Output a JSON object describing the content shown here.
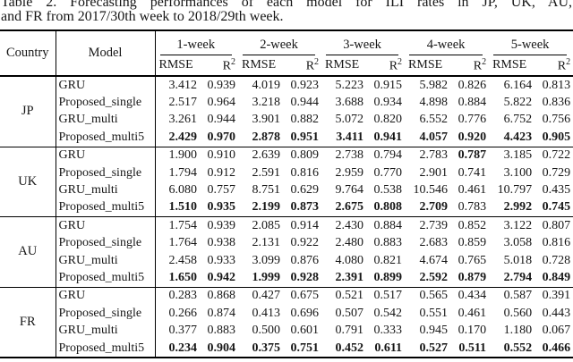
{
  "caption": {
    "line1": "Table 2. Forecasting performances of each model for ILI rates in JP, UK, AU,",
    "line2": "and FR from 2017/30th week to 2018/29th week."
  },
  "colors": {
    "background": "#ffffff",
    "text": "#161616",
    "rule": "#000000"
  },
  "table": {
    "country_header": "Country",
    "model_header": "Model",
    "week_headers": [
      "1-week",
      "2-week",
      "3-week",
      "4-week",
      "5-week"
    ],
    "metric_rmse": "RMSE",
    "metric_r2_base": "R",
    "metric_r2_sup": "2",
    "sections": [
      {
        "country": "JP",
        "rows": [
          {
            "model": "GRU",
            "values": [
              "3.412",
              "0.939",
              "4.019",
              "0.923",
              "5.223",
              "0.915",
              "5.982",
              "0.826",
              "6.164",
              "0.813"
            ],
            "bold": [
              false,
              false,
              false,
              false,
              false,
              false,
              false,
              false,
              false,
              false
            ]
          },
          {
            "model": "Proposed_single",
            "values": [
              "2.517",
              "0.964",
              "3.218",
              "0.944",
              "3.688",
              "0.934",
              "4.898",
              "0.884",
              "5.822",
              "0.836"
            ],
            "bold": [
              false,
              false,
              false,
              false,
              false,
              false,
              false,
              false,
              false,
              false
            ]
          },
          {
            "model": "GRU_multi",
            "values": [
              "3.261",
              "0.944",
              "3.901",
              "0.882",
              "5.072",
              "0.820",
              "6.552",
              "0.776",
              "6.752",
              "0.756"
            ],
            "bold": [
              false,
              false,
              false,
              false,
              false,
              false,
              false,
              false,
              false,
              false
            ]
          },
          {
            "model": "Proposed_multi5",
            "values": [
              "2.429",
              "0.970",
              "2.878",
              "0.951",
              "3.411",
              "0.941",
              "4.057",
              "0.920",
              "4.423",
              "0.905"
            ],
            "bold": [
              true,
              true,
              true,
              true,
              true,
              true,
              true,
              true,
              true,
              true
            ]
          }
        ]
      },
      {
        "country": "UK",
        "rows": [
          {
            "model": "GRU",
            "values": [
              "1.900",
              "0.910",
              "2.639",
              "0.809",
              "2.738",
              "0.794",
              "2.783",
              "0.787",
              "3.185",
              "0.722"
            ],
            "bold": [
              false,
              false,
              false,
              false,
              false,
              false,
              false,
              true,
              false,
              false
            ]
          },
          {
            "model": "Proposed_single",
            "values": [
              "1.794",
              "0.912",
              "2.591",
              "0.816",
              "2.959",
              "0.770",
              "2.901",
              "0.741",
              "3.100",
              "0.729"
            ],
            "bold": [
              false,
              false,
              false,
              false,
              false,
              false,
              false,
              false,
              false,
              false
            ]
          },
          {
            "model": "GRU_multi",
            "values": [
              "6.080",
              "0.757",
              "8.751",
              "0.629",
              "9.764",
              "0.538",
              "10.546",
              "0.461",
              "10.797",
              "0.435"
            ],
            "bold": [
              false,
              false,
              false,
              false,
              false,
              false,
              false,
              false,
              false,
              false
            ]
          },
          {
            "model": "Proposed_multi5",
            "values": [
              "1.510",
              "0.935",
              "2.199",
              "0.873",
              "2.675",
              "0.808",
              "2.709",
              "0.783",
              "2.992",
              "0.745"
            ],
            "bold": [
              true,
              true,
              true,
              true,
              true,
              true,
              true,
              false,
              true,
              true
            ]
          }
        ]
      },
      {
        "country": "AU",
        "rows": [
          {
            "model": "GRU",
            "values": [
              "1.754",
              "0.939",
              "2.085",
              "0.914",
              "2.430",
              "0.884",
              "2.739",
              "0.852",
              "3.122",
              "0.807"
            ],
            "bold": [
              false,
              false,
              false,
              false,
              false,
              false,
              false,
              false,
              false,
              false
            ]
          },
          {
            "model": "Proposed_single",
            "values": [
              "1.764",
              "0.938",
              "2.131",
              "0.922",
              "2.480",
              "0.883",
              "2.683",
              "0.859",
              "3.058",
              "0.816"
            ],
            "bold": [
              false,
              false,
              false,
              false,
              false,
              false,
              false,
              false,
              false,
              false
            ]
          },
          {
            "model": "GRU_multi",
            "values": [
              "2.458",
              "0.933",
              "3.099",
              "0.876",
              "4.080",
              "0.821",
              "4.674",
              "0.765",
              "5.018",
              "0.728"
            ],
            "bold": [
              false,
              false,
              false,
              false,
              false,
              false,
              false,
              false,
              false,
              false
            ]
          },
          {
            "model": "Proposed_multi5",
            "values": [
              "1.650",
              "0.942",
              "1.999",
              "0.928",
              "2.391",
              "0.899",
              "2.592",
              "0.879",
              "2.794",
              "0.849"
            ],
            "bold": [
              true,
              true,
              true,
              true,
              true,
              true,
              true,
              true,
              true,
              true
            ]
          }
        ]
      },
      {
        "country": "FR",
        "rows": [
          {
            "model": "GRU",
            "values": [
              "0.283",
              "0.868",
              "0.427",
              "0.675",
              "0.521",
              "0.517",
              "0.565",
              "0.434",
              "0.587",
              "0.391"
            ],
            "bold": [
              false,
              false,
              false,
              false,
              false,
              false,
              false,
              false,
              false,
              false
            ]
          },
          {
            "model": "Proposed_single",
            "values": [
              "0.266",
              "0.874",
              "0.413",
              "0.696",
              "0.507",
              "0.542",
              "0.551",
              "0.461",
              "0.560",
              "0.443"
            ],
            "bold": [
              false,
              false,
              false,
              false,
              false,
              false,
              false,
              false,
              false,
              false
            ]
          },
          {
            "model": "GRU_multi",
            "values": [
              "0.377",
              "0.883",
              "0.500",
              "0.601",
              "0.791",
              "0.333",
              "0.945",
              "0.170",
              "1.180",
              "0.067"
            ],
            "bold": [
              false,
              false,
              false,
              false,
              false,
              false,
              false,
              false,
              false,
              false
            ]
          },
          {
            "model": "Proposed_multi5",
            "values": [
              "0.234",
              "0.904",
              "0.375",
              "0.751",
              "0.452",
              "0.611",
              "0.527",
              "0.511",
              "0.552",
              "0.466"
            ],
            "bold": [
              true,
              true,
              true,
              true,
              true,
              true,
              true,
              true,
              true,
              true
            ]
          }
        ]
      }
    ]
  }
}
